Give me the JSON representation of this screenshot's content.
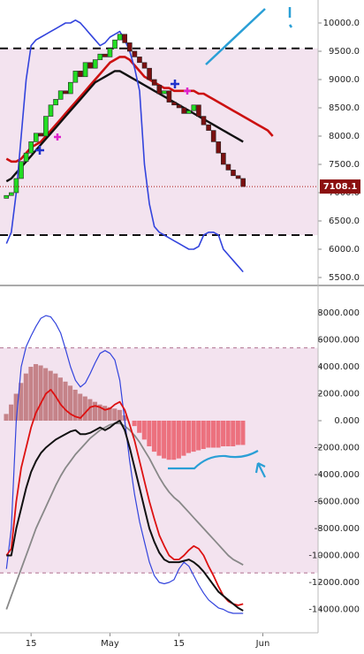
{
  "chart_data": [
    {
      "type": "candlestick",
      "x": [
        10,
        11,
        12,
        13,
        14,
        15,
        16,
        17,
        18,
        19,
        20,
        21,
        22,
        23,
        24,
        25,
        26,
        27,
        28,
        29,
        30,
        31,
        32,
        33,
        34,
        35,
        36,
        37,
        38,
        39,
        40,
        41,
        42,
        43,
        44,
        45,
        46,
        47,
        48,
        49,
        50,
        51,
        52,
        53,
        54,
        55,
        56,
        57,
        58,
        59,
        60,
        61,
        62,
        63,
        64
      ],
      "open": [
        6900,
        6950,
        7000,
        7250,
        7550,
        7700,
        7900,
        8050,
        8000,
        8350,
        8550,
        8650,
        8800,
        8750,
        8950,
        9150,
        9050,
        9300,
        9200,
        9350,
        9450,
        9400,
        9550,
        9700,
        9800,
        9650,
        9500,
        9400,
        9300,
        9200,
        9000,
        8900,
        8750,
        8800,
        8600,
        8550,
        8500,
        8400,
        8450,
        8550,
        8350,
        8200,
        8100,
        7900,
        7700,
        7500,
        7400,
        7300,
        7250,
        null,
        null,
        null,
        null,
        null,
        null
      ],
      "close": [
        6950,
        7000,
        7250,
        7550,
        7700,
        7900,
        8050,
        8000,
        8350,
        8550,
        8650,
        8800,
        8750,
        8950,
        9150,
        9050,
        9300,
        9200,
        9350,
        9450,
        9400,
        9550,
        9700,
        9800,
        9650,
        9500,
        9400,
        9300,
        9200,
        9000,
        8900,
        8750,
        8800,
        8600,
        8550,
        8500,
        8400,
        8450,
        8550,
        8350,
        8200,
        8100,
        7900,
        7700,
        7500,
        7400,
        7300,
        7250,
        7108.1,
        null,
        null,
        null,
        null,
        null,
        null
      ],
      "up_color": "#22dd22",
      "down_color": "#7a1010",
      "series": [
        {
          "color": "#cc1111",
          "width": 2.6,
          "values": [
            7600,
            7550,
            7550,
            7600,
            7700,
            7800,
            7850,
            7900,
            8000,
            8100,
            8200,
            8300,
            8400,
            8500,
            8600,
            8700,
            8800,
            8900,
            9000,
            9100,
            9200,
            9300,
            9350,
            9400,
            9400,
            9350,
            9250,
            9150,
            9050,
            9000,
            8950,
            8900,
            8850,
            8850,
            8800,
            8800,
            8800,
            8800,
            8800,
            8750,
            8750,
            8700,
            8650,
            8600,
            8550,
            8500,
            8450,
            8400,
            8350,
            8300,
            8250,
            8200,
            8150,
            8100,
            8000
          ]
        },
        {
          "color": "#111111",
          "width": 2.4,
          "values": [
            7200,
            7250,
            7350,
            7450,
            7550,
            7650,
            7750,
            7850,
            7950,
            8050,
            8150,
            8250,
            8350,
            8450,
            8550,
            8650,
            8750,
            8850,
            8950,
            9000,
            9050,
            9100,
            9150,
            9150,
            9100,
            9050,
            9000,
            8950,
            8900,
            8850,
            8800,
            8750,
            8700,
            8650,
            8600,
            8550,
            8500,
            8450,
            8400,
            8350,
            8300,
            8250,
            8200,
            8150,
            8100,
            8050,
            8000,
            7950,
            7900,
            null,
            null,
            null,
            null,
            null,
            null
          ]
        },
        {
          "color": "#3344dd",
          "width": 1.6,
          "values": [
            6100,
            6300,
            7000,
            8000,
            9000,
            9600,
            9700,
            9750,
            9800,
            9850,
            9900,
            9950,
            10000,
            10000,
            10050,
            10000,
            9900,
            9800,
            9700,
            9600,
            9650,
            9750,
            9800,
            9850,
            9700,
            9500,
            9200,
            8800,
            7500,
            6800,
            6400,
            6300,
            6250,
            6200,
            6150,
            6100,
            6050,
            6000,
            6000,
            6050,
            6250,
            6300,
            6300,
            6250,
            6000,
            5900,
            5800,
            5700,
            5600,
            null,
            null,
            null,
            null,
            null,
            null
          ]
        }
      ],
      "hlines": [
        9550,
        6250
      ],
      "last_price": 7108.1,
      "xlim": [
        8.7,
        73.2
      ],
      "ylim": [
        5375,
        10406
      ],
      "yticks": [
        {
          "value": 10000,
          "label": "10000.0"
        },
        {
          "value": 9500,
          "label": "9500.0"
        },
        {
          "value": 9000,
          "label": "9000.0"
        },
        {
          "value": 8500,
          "label": "8500.0"
        },
        {
          "value": 8000,
          "label": "8000.0"
        },
        {
          "value": 7500,
          "label": "7500.0"
        },
        {
          "value": 7000,
          "label": "7000.0"
        },
        {
          "value": 6500,
          "label": "6500.0"
        },
        {
          "value": 6000,
          "label": "6000.0"
        },
        {
          "value": 5500,
          "label": "5500.0"
        }
      ]
    },
    {
      "type": "bar",
      "x": [
        10,
        11,
        12,
        13,
        14,
        15,
        16,
        17,
        18,
        19,
        20,
        21,
        22,
        23,
        24,
        25,
        26,
        27,
        28,
        29,
        30,
        31,
        32,
        33,
        34,
        35,
        36,
        37,
        38,
        39,
        40,
        41,
        42,
        43,
        44,
        45,
        46,
        47,
        48,
        49,
        50,
        51,
        52,
        53,
        54,
        55,
        56,
        57,
        58
      ],
      "values": [
        500,
        1200,
        2000,
        2800,
        3500,
        4000,
        4200,
        4100,
        3900,
        3700,
        3500,
        3200,
        2900,
        2600,
        2300,
        2000,
        1800,
        1600,
        1400,
        1200,
        1100,
        1000,
        900,
        800,
        400,
        0,
        -400,
        -900,
        -1400,
        -1900,
        -2300,
        -2600,
        -2800,
        -2900,
        -2900,
        -2800,
        -2600,
        -2400,
        -2300,
        -2200,
        -2100,
        -2000,
        -2000,
        -2000,
        -1900,
        -1900,
        -1900,
        -1800,
        -1800
      ],
      "pos_color": "#b05a5e",
      "neg_color": "#e8404e",
      "series": [
        {
          "color": "#888888",
          "width": 1.8,
          "values": [
            -14000,
            -13000,
            -12000,
            -11000,
            -10000,
            -9000,
            -8000,
            -7200,
            -6400,
            -5600,
            -4800,
            -4100,
            -3500,
            -3000,
            -2500,
            -2100,
            -1700,
            -1300,
            -1000,
            -700,
            -500,
            -300,
            -200,
            -200,
            -400,
            -700,
            -1100,
            -1600,
            -2200,
            -2800,
            -3500,
            -4200,
            -4800,
            -5300,
            -5700,
            -6000,
            -6400,
            -6800,
            -7200,
            -7600,
            -8000,
            -8400,
            -8800,
            -9200,
            -9600,
            -10000,
            -10300,
            -10500,
            -10700
          ]
        },
        {
          "color": "#3344dd",
          "width": 1.2,
          "values": [
            -11000,
            -8000,
            0,
            4000,
            5500,
            6300,
            7000,
            7600,
            7800,
            7700,
            7200,
            6500,
            5300,
            4000,
            3000,
            2500,
            2800,
            3500,
            4300,
            5000,
            5200,
            5000,
            4500,
            3000,
            0,
            -3000,
            -5500,
            -7500,
            -9000,
            -10500,
            -11500,
            -12000,
            -12100,
            -12000,
            -11800,
            -11000,
            -10500,
            -10800,
            -11500,
            -12200,
            -12800,
            -13300,
            -13600,
            -13900,
            -14000,
            -14200,
            -14300,
            -14300,
            -14300
          ]
        },
        {
          "color": "#dd1111",
          "width": 1.8,
          "values": [
            -10000,
            -9500,
            -6000,
            -3500,
            -2000,
            -500,
            600,
            1300,
            2000,
            2300,
            1800,
            1200,
            800,
            500,
            300,
            200,
            600,
            1000,
            1100,
            1000,
            800,
            900,
            1200,
            1400,
            800,
            -300,
            -1500,
            -3000,
            -4500,
            -6000,
            -7300,
            -8500,
            -9300,
            -10000,
            -10300,
            -10300,
            -10000,
            -9600,
            -9300,
            -9500,
            -10000,
            -10800,
            -11500,
            -12300,
            -13000,
            -13400,
            -13600,
            -13700,
            -13600
          ]
        },
        {
          "color": "#111111",
          "width": 2,
          "values": [
            -10000,
            -10000,
            -8000,
            -6500,
            -5000,
            -3800,
            -3000,
            -2400,
            -2000,
            -1700,
            -1400,
            -1200,
            -1000,
            -800,
            -700,
            -1000,
            -1000,
            -900,
            -700,
            -500,
            -700,
            -500,
            -200,
            0,
            -700,
            -2000,
            -3500,
            -5000,
            -6500,
            -8000,
            -9000,
            -9800,
            -10300,
            -10500,
            -10500,
            -10500,
            -10400,
            -10300,
            -10500,
            -10800,
            -11200,
            -11700,
            -12200,
            -12700,
            -13000,
            -13300,
            -13600,
            -13900,
            -14100
          ]
        }
      ],
      "hlines": [
        5400,
        -11300
      ],
      "xlim": [
        8.7,
        73.2
      ],
      "ylim": [
        -15740,
        9970
      ],
      "yticks": [
        {
          "value": 8000,
          "label": "8000.000"
        },
        {
          "value": 6000,
          "label": "6000.000"
        },
        {
          "value": 4000,
          "label": "4000.000"
        },
        {
          "value": 2000,
          "label": "2000.000"
        },
        {
          "value": 0,
          "label": "0.000"
        },
        {
          "value": -2000,
          "label": "-2000.000"
        },
        {
          "value": -4000,
          "label": "-4000.000"
        },
        {
          "value": -6000,
          "label": "-6000.000"
        },
        {
          "value": -8000,
          "label": "-8000.000"
        },
        {
          "value": -10000,
          "label": "-10000.000"
        },
        {
          "value": -12000,
          "label": "-12000.000"
        },
        {
          "value": -14000,
          "label": "-14000.000"
        }
      ],
      "xticks": [
        15,
        {
          "value": 31,
          "label": "May"
        },
        {
          "value": 45,
          "label": "15"
        },
        {
          "value": 62,
          "label": "Jun"
        }
      ]
    }
  ]
}
